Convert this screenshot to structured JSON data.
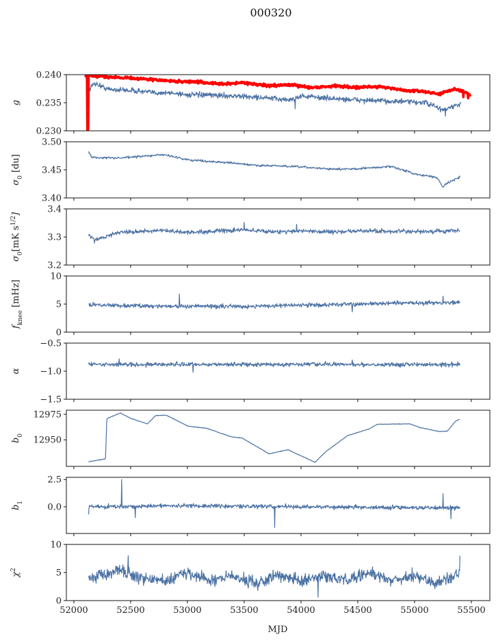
{
  "chart_data": {
    "type": "line",
    "title": "000320",
    "xlabel": "MJD",
    "xlim": [
      51934,
      55663
    ],
    "xticks": [
      52000,
      52500,
      53000,
      53500,
      54000,
      54500,
      55000,
      55500
    ],
    "xtick_labels": [
      "52000",
      "52500",
      "53000",
      "53500",
      "54000",
      "54500",
      "55000",
      "55500"
    ],
    "series_color": "#4c72a4",
    "panels": [
      {
        "ylabel_parts": [
          {
            "t": "g",
            "s": ""
          }
        ],
        "ylim": [
          0.23,
          0.24
        ],
        "yticks": [
          0.23,
          0.235,
          0.24
        ],
        "ytick_labels": [
          "0.230",
          "0.235",
          "0.240"
        ],
        "series": [
          {
            "name": "g (smoothed)",
            "color": "#4c72a4",
            "width": 1.2,
            "noise": 0.00045,
            "x_range": [
              52130,
              55410
            ],
            "trend": [
              [
                52130,
                0.2372
              ],
              [
                52180,
                0.2385
              ],
              [
                52300,
                0.2374
              ],
              [
                52500,
                0.2372
              ],
              [
                52700,
                0.2368
              ],
              [
                52900,
                0.2367
              ],
              [
                53000,
                0.2364
              ],
              [
                53300,
                0.2363
              ],
              [
                53600,
                0.236
              ],
              [
                53900,
                0.2355
              ],
              [
                54000,
                0.2362
              ],
              [
                54300,
                0.2357
              ],
              [
                54600,
                0.2354
              ],
              [
                54900,
                0.2352
              ],
              [
                55100,
                0.235
              ],
              [
                55250,
                0.2337
              ],
              [
                55410,
                0.2348
              ]
            ],
            "spikes": [
              [
                53950,
                0.2339
              ],
              [
                55270,
                0.2326
              ]
            ]
          },
          {
            "name": "g (raw)",
            "color": "#ff0000",
            "width": 3.5,
            "noise": 0.00022,
            "x_range": [
              52100,
              55490
            ],
            "trend": [
              [
                52100,
                0.2398
              ],
              [
                52300,
                0.2396
              ],
              [
                52500,
                0.2394
              ],
              [
                52700,
                0.2391
              ],
              [
                52900,
                0.2388
              ],
              [
                53100,
                0.2387
              ],
              [
                53300,
                0.2383
              ],
              [
                53500,
                0.2386
              ],
              [
                53700,
                0.238
              ],
              [
                53900,
                0.2382
              ],
              [
                54100,
                0.2377
              ],
              [
                54300,
                0.238
              ],
              [
                54500,
                0.2377
              ],
              [
                54700,
                0.2379
              ],
              [
                54900,
                0.2372
              ],
              [
                55100,
                0.237
              ],
              [
                55200,
                0.2365
              ],
              [
                55350,
                0.2375
              ],
              [
                55490,
                0.2365
              ]
            ],
            "spikes": [
              [
                52120,
                0.23
              ],
              [
                52125,
                0.2302
              ],
              [
                55430,
                0.236
              ],
              [
                55470,
                0.2358
              ],
              [
                55490,
                0.2361
              ]
            ]
          }
        ]
      },
      {
        "ylabel_parts": [
          {
            "t": "σ",
            "s": ""
          },
          {
            "t": "0",
            "s": "sub"
          },
          {
            "t": " [du]",
            "s": ""
          }
        ],
        "ylim": [
          3.4,
          3.5
        ],
        "yticks": [
          3.4,
          3.45,
          3.5
        ],
        "ytick_labels": [
          "3.40",
          "3.45",
          "3.50"
        ],
        "series": [
          {
            "name": "sigma0_du",
            "color": "#4c72a4",
            "width": 1.2,
            "noise": 0.0018,
            "x_range": [
              52130,
              55400
            ],
            "trend": [
              [
                52130,
                3.482
              ],
              [
                52160,
                3.472
              ],
              [
                52400,
                3.471
              ],
              [
                52800,
                3.477
              ],
              [
                53000,
                3.468
              ],
              [
                53200,
                3.465
              ],
              [
                53400,
                3.462
              ],
              [
                53600,
                3.458
              ],
              [
                53800,
                3.457
              ],
              [
                54000,
                3.455
              ],
              [
                54300,
                3.451
              ],
              [
                54500,
                3.452
              ],
              [
                54800,
                3.456
              ],
              [
                55000,
                3.443
              ],
              [
                55200,
                3.436
              ],
              [
                55250,
                3.42
              ],
              [
                55300,
                3.428
              ],
              [
                55400,
                3.437
              ]
            ],
            "spikes": []
          }
        ]
      },
      {
        "ylabel_parts": [
          {
            "t": "σ",
            "s": ""
          },
          {
            "t": "0",
            "s": "sub"
          },
          {
            "t": "[mK s",
            "s": ""
          },
          {
            "t": "1/2",
            "s": "sup"
          },
          {
            "t": "]",
            "s": ""
          }
        ],
        "ylim": [
          3.2,
          3.4
        ],
        "yticks": [
          3.2,
          3.3,
          3.4
        ],
        "ytick_labels": [
          "3.2",
          "3.3",
          "3.4"
        ],
        "series": [
          {
            "name": "sigma0_mK",
            "color": "#4c72a4",
            "width": 1.2,
            "noise": 0.007,
            "x_range": [
              52130,
              55400
            ],
            "trend": [
              [
                52130,
                3.305
              ],
              [
                52200,
                3.29
              ],
              [
                52400,
                3.318
              ],
              [
                52800,
                3.322
              ],
              [
                53000,
                3.316
              ],
              [
                53200,
                3.32
              ],
              [
                53500,
                3.325
              ],
              [
                53800,
                3.318
              ],
              [
                54000,
                3.322
              ],
              [
                54300,
                3.318
              ],
              [
                54600,
                3.322
              ],
              [
                55000,
                3.318
              ],
              [
                55400,
                3.322
              ]
            ],
            "spikes": [
              [
                52180,
                3.278
              ],
              [
                53500,
                3.352
              ],
              [
                53960,
                3.345
              ]
            ]
          }
        ]
      },
      {
        "ylabel_parts": [
          {
            "t": "f",
            "s": ""
          },
          {
            "t": "knee",
            "s": "sub"
          },
          {
            "t": " [mHz]",
            "s": ""
          }
        ],
        "ylim": [
          0,
          10
        ],
        "yticks": [
          0,
          5,
          10
        ],
        "ytick_labels": [
          "0",
          "5",
          "10"
        ],
        "series": [
          {
            "name": "fknee",
            "color": "#4c72a4",
            "width": 1.2,
            "noise": 0.35,
            "x_range": [
              52130,
              55400
            ],
            "trend": [
              [
                52130,
                4.9
              ],
              [
                52500,
                4.7
              ],
              [
                53000,
                4.6
              ],
              [
                53500,
                4.6
              ],
              [
                54000,
                4.8
              ],
              [
                54500,
                5.0
              ],
              [
                55000,
                5.2
              ],
              [
                55400,
                5.3
              ]
            ],
            "spikes": [
              [
                52930,
                6.8
              ],
              [
                54450,
                3.6
              ],
              [
                55250,
                6.4
              ]
            ]
          }
        ]
      },
      {
        "ylabel_parts": [
          {
            "t": "α",
            "s": ""
          }
        ],
        "ylim": [
          -1.5,
          -0.5
        ],
        "yticks": [
          -1.5,
          -1.0,
          -0.5
        ],
        "ytick_labels": [
          "−1.5",
          "−1.0",
          "−0.5"
        ],
        "series": [
          {
            "name": "alpha",
            "color": "#4c72a4",
            "width": 1.2,
            "noise": 0.035,
            "x_range": [
              52130,
              55400
            ],
            "trend": [
              [
                52130,
                -0.88
              ],
              [
                53000,
                -0.88
              ],
              [
                54000,
                -0.88
              ],
              [
                55400,
                -0.88
              ]
            ],
            "spikes": [
              [
                52400,
                -0.78
              ],
              [
                53050,
                -1.02
              ],
              [
                54450,
                -0.8
              ]
            ]
          }
        ]
      },
      {
        "ylabel_parts": [
          {
            "t": "b",
            "s": ""
          },
          {
            "t": "0",
            "s": "sub"
          }
        ],
        "ylim": [
          12924,
          12979
        ],
        "yticks": [
          12950,
          12975
        ],
        "ytick_labels": [
          "12950",
          "12975"
        ],
        "series": [
          {
            "name": "b0",
            "color": "#4c72a4",
            "width": 1.2,
            "noise": 0.25,
            "x_range": [
              52129,
              55398
            ],
            "trend": [
              [
                52129,
                12928.5
              ],
              [
                52279,
                12931.4
              ],
              [
                52290,
                12970.8
              ],
              [
                52410,
                12976.3
              ],
              [
                52505,
                12970.8
              ],
              [
                52648,
                12965.6
              ],
              [
                52719,
                12973.7
              ],
              [
                52814,
                12974.1
              ],
              [
                53005,
                12963.4
              ],
              [
                53171,
                12961.2
              ],
              [
                53386,
                12953
              ],
              [
                53481,
                12951.8
              ],
              [
                53719,
                12936.3
              ],
              [
                53886,
                12940.3
              ],
              [
                54124,
                12928
              ],
              [
                54219,
                12938.5
              ],
              [
                54410,
                12954.1
              ],
              [
                54600,
                12960.7
              ],
              [
                54671,
                12965.2
              ],
              [
                54957,
                12965.6
              ],
              [
                55052,
                12961.9
              ],
              [
                55219,
                12958.1
              ],
              [
                55290,
                12958.5
              ],
              [
                55362,
                12968.5
              ],
              [
                55398,
                12970.1
              ]
            ],
            "spikes": []
          }
        ]
      },
      {
        "ylabel_parts": [
          {
            "t": "b",
            "s": ""
          },
          {
            "t": "1",
            "s": "sub"
          }
        ],
        "ylim": [
          -2.45,
          2.7
        ],
        "yticks": [
          0.0,
          2.5
        ],
        "ytick_labels": [
          "0.0",
          "2.5"
        ],
        "series": [
          {
            "name": "b1",
            "color": "#4c72a4",
            "width": 1.2,
            "noise": 0.18,
            "x_range": [
              52130,
              55400
            ],
            "trend": [
              [
                52130,
                0.0
              ],
              [
                53000,
                0.1
              ],
              [
                54000,
                0.0
              ],
              [
                55400,
                -0.1
              ]
            ],
            "spikes": [
              [
                52130,
                -0.7
              ],
              [
                52420,
                2.5
              ],
              [
                52540,
                -1.0
              ],
              [
                53770,
                -1.9
              ],
              [
                55250,
                1.2
              ],
              [
                55320,
                -1.1
              ]
            ]
          }
        ]
      },
      {
        "ylabel_parts": [
          {
            "t": "χ",
            "s": ""
          },
          {
            "t": "2",
            "s": "sup"
          }
        ],
        "ylim": [
          0,
          10
        ],
        "yticks": [
          0,
          5,
          10
        ],
        "ytick_labels": [
          "0",
          "5",
          "10"
        ],
        "series": [
          {
            "name": "chi2",
            "color": "#4c72a4",
            "width": 1.2,
            "noise": 1.0,
            "x_range": [
              52130,
              55400
            ],
            "trend": [
              [
                52130,
                4.0
              ],
              [
                52400,
                5.5
              ],
              [
                52600,
                4.0
              ],
              [
                52800,
                3.5
              ],
              [
                53000,
                5.0
              ],
              [
                53200,
                3.5
              ],
              [
                53400,
                4.5
              ],
              [
                53600,
                3.0
              ],
              [
                53800,
                4.5
              ],
              [
                54000,
                3.5
              ],
              [
                54200,
                4.5
              ],
              [
                54400,
                3.5
              ],
              [
                54600,
                5.0
              ],
              [
                54800,
                3.5
              ],
              [
                55000,
                4.5
              ],
              [
                55200,
                3.0
              ],
              [
                55400,
                5.0
              ]
            ],
            "spikes": [
              [
                52480,
                8.0
              ],
              [
                54150,
                0.6
              ],
              [
                55400,
                8.0
              ]
            ]
          }
        ]
      }
    ]
  }
}
